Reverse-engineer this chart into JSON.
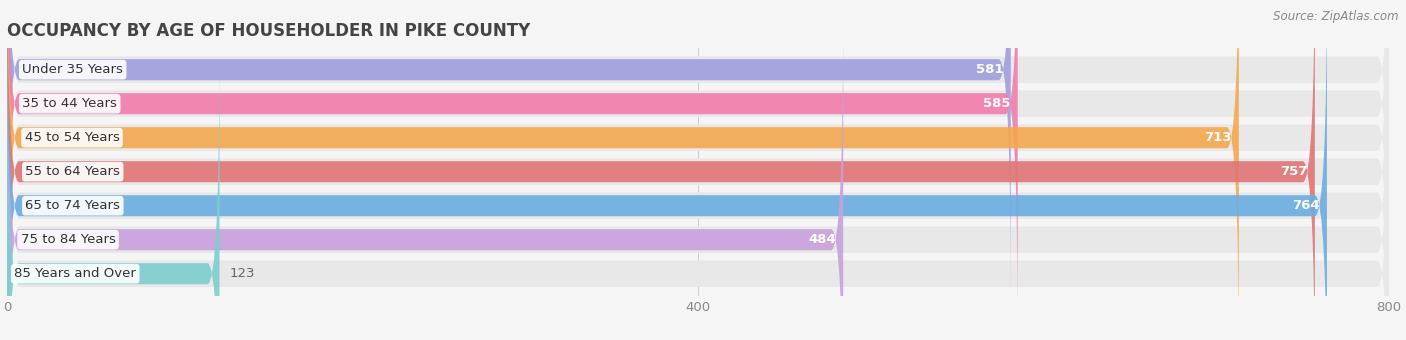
{
  "title": "OCCUPANCY BY AGE OF HOUSEHOLDER IN PIKE COUNTY",
  "source": "Source: ZipAtlas.com",
  "categories": [
    "Under 35 Years",
    "35 to 44 Years",
    "45 to 54 Years",
    "55 to 64 Years",
    "65 to 74 Years",
    "75 to 84 Years",
    "85 Years and Over"
  ],
  "values": [
    581,
    585,
    713,
    757,
    764,
    484,
    123
  ],
  "bar_colors": [
    "#a09edd",
    "#f07daa",
    "#f5a84e",
    "#e07575",
    "#6aaee0",
    "#c9a0dc",
    "#7ecece"
  ],
  "xlim": [
    0,
    800
  ],
  "xticks": [
    0,
    400,
    800
  ],
  "background_color": "#f5f5f5",
  "bar_background_color": "#e8e8e8",
  "label_fontsize": 9.5,
  "value_fontsize": 9.5,
  "title_fontsize": 12,
  "title_color": "#444444",
  "label_color": "#444444",
  "tick_color": "#888888"
}
